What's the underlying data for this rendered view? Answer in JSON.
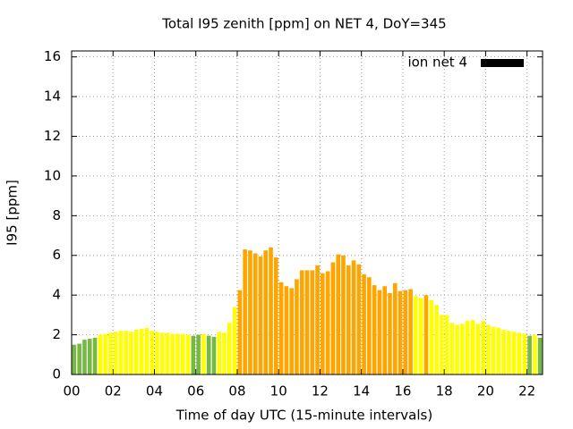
{
  "chart_data": {
    "type": "bar",
    "title": "Total I95 zenith [ppm] on NET 4, DoY=345",
    "xlabel": "Time of day UTC (15-minute intervals)",
    "ylabel": "I95 [ppm]",
    "legend": {
      "name": "ion net 4",
      "color": "#000000",
      "position": "top-right"
    },
    "x": [
      0,
      0.25,
      0.5,
      0.75,
      1,
      1.25,
      1.5,
      1.75,
      2,
      2.25,
      2.5,
      2.75,
      3,
      3.25,
      3.5,
      3.75,
      4,
      4.25,
      4.5,
      4.75,
      5,
      5.25,
      5.5,
      5.75,
      6,
      6.25,
      6.5,
      6.75,
      7,
      7.25,
      7.5,
      7.75,
      8,
      8.25,
      8.5,
      8.75,
      9,
      9.25,
      9.5,
      9.75,
      10,
      10.25,
      10.5,
      10.75,
      11,
      11.25,
      11.5,
      11.75,
      12,
      12.25,
      12.5,
      12.75,
      13,
      13.25,
      13.5,
      13.75,
      14,
      14.25,
      14.5,
      14.75,
      15,
      15.25,
      15.5,
      15.75,
      16,
      16.25,
      16.5,
      16.75,
      17,
      17.25,
      17.5,
      17.75,
      18,
      18.25,
      18.5,
      18.75,
      19,
      19.25,
      19.5,
      19.75,
      20,
      20.25,
      20.5,
      20.75,
      21,
      21.25,
      21.5,
      21.75,
      22,
      22.25,
      22.5
    ],
    "values": [
      1.5,
      1.55,
      1.75,
      1.8,
      1.85,
      2.0,
      2.05,
      2.1,
      2.15,
      2.2,
      2.2,
      2.15,
      2.25,
      2.3,
      2.35,
      2.2,
      2.15,
      2.1,
      2.1,
      2.05,
      2.05,
      2.05,
      2.0,
      1.95,
      2.0,
      2.05,
      1.95,
      1.9,
      2.15,
      2.1,
      2.6,
      3.4,
      4.25,
      6.3,
      6.25,
      6.1,
      5.95,
      6.25,
      6.4,
      5.9,
      4.65,
      4.45,
      4.35,
      4.8,
      5.25,
      5.25,
      5.25,
      5.5,
      5.1,
      5.2,
      5.65,
      6.05,
      6.0,
      5.5,
      5.75,
      5.55,
      5.05,
      4.9,
      4.5,
      4.25,
      4.45,
      4.1,
      4.6,
      4.2,
      4.25,
      4.3,
      3.95,
      3.85,
      4.0,
      3.75,
      3.5,
      3.0,
      3.0,
      2.6,
      2.5,
      2.55,
      2.7,
      2.75,
      2.55,
      2.7,
      2.5,
      2.4,
      2.35,
      2.25,
      2.2,
      2.15,
      2.1,
      2.05,
      1.95,
      2.0,
      1.85
    ],
    "colors": [
      "#77b844",
      "#77b844",
      "#77b844",
      "#77b844",
      "#77b844",
      "#ffff00",
      "#ffff00",
      "#ffff00",
      "#ffff00",
      "#ffff00",
      "#ffff00",
      "#ffff00",
      "#ffff00",
      "#ffff00",
      "#ffff00",
      "#ffff00",
      "#ffff00",
      "#ffff00",
      "#ffff00",
      "#ffff00",
      "#ffff00",
      "#ffff00",
      "#ffff00",
      "#77b844",
      "#77b844",
      "#ffff00",
      "#77b844",
      "#77b844",
      "#ffff00",
      "#ffff00",
      "#ffff00",
      "#ffff00",
      "#ffa500",
      "#ffa500",
      "#ffa500",
      "#ffa500",
      "#ffa500",
      "#ffa500",
      "#ffa500",
      "#ffa500",
      "#ffa500",
      "#ffa500",
      "#ffa500",
      "#ffa500",
      "#ffa500",
      "#ffa500",
      "#ffa500",
      "#ffa500",
      "#ffa500",
      "#ffa500",
      "#ffa500",
      "#ffa500",
      "#ffa500",
      "#ffa500",
      "#ffa500",
      "#ffa500",
      "#ffa500",
      "#ffa500",
      "#ffa500",
      "#ffa500",
      "#ffa500",
      "#ffa500",
      "#ffa500",
      "#ffa500",
      "#ffa500",
      "#ffa500",
      "#ffff00",
      "#ffff00",
      "#ffa500",
      "#ffff00",
      "#ffff00",
      "#ffff00",
      "#ffff00",
      "#ffff00",
      "#ffff00",
      "#ffff00",
      "#ffff00",
      "#ffff00",
      "#ffff00",
      "#ffff00",
      "#ffff00",
      "#ffff00",
      "#ffff00",
      "#ffff00",
      "#ffff00",
      "#ffff00",
      "#ffff00",
      "#ffff00",
      "#77b844",
      "#ffff00",
      "#77b844"
    ],
    "bar_width": 0.25,
    "xlim": [
      0,
      22.75
    ],
    "xticks": [
      {
        "value": 0,
        "label": "00"
      },
      {
        "value": 2,
        "label": "02"
      },
      {
        "value": 4,
        "label": "04"
      },
      {
        "value": 6,
        "label": "06"
      },
      {
        "value": 8,
        "label": "08"
      },
      10,
      12,
      14,
      16,
      18,
      20,
      22
    ],
    "ylim": [
      0,
      16.3
    ],
    "yticks": [
      0,
      2,
      4,
      6,
      8,
      10,
      12,
      14,
      16
    ],
    "grid": true
  }
}
